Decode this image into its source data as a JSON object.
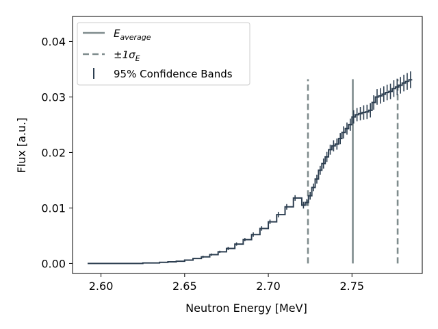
{
  "chart_data": {
    "type": "line",
    "title": "",
    "xlabel": "Neutron Energy [MeV]",
    "ylabel": "Flux [a.u.]",
    "xlim": [
      2.583,
      2.792
    ],
    "ylim": [
      -0.0018,
      0.0445
    ],
    "x_ticks": [
      "2.60",
      "2.65",
      "2.70",
      "2.75"
    ],
    "x_tick_values": [
      2.6,
      2.65,
      2.7,
      2.75
    ],
    "y_ticks": [
      "0.00",
      "0.01",
      "0.02",
      "0.03",
      "0.04"
    ],
    "y_tick_values": [
      0.0,
      0.01,
      0.02,
      0.03,
      0.04
    ],
    "grid": false,
    "legend_position": "top-left",
    "colors": {
      "spectrum": "#2c3e50",
      "reference_lines": "#7f8c8d"
    },
    "legend": [
      {
        "key": "mean",
        "style": "solid",
        "label_main": "E",
        "label_sub": "average"
      },
      {
        "key": "sigma",
        "style": "dashed",
        "label_main": "±1σ",
        "label_sub": "E"
      },
      {
        "key": "bands",
        "style": "errorbar",
        "label_main": "95% Confidence Bands",
        "label_sub": ""
      }
    ],
    "series": [
      {
        "step": "post",
        "x": [
          2.592,
          2.595,
          2.6,
          2.605,
          2.61,
          2.615,
          2.62,
          2.625,
          2.63,
          2.635,
          2.64,
          2.645,
          2.65,
          2.655,
          2.66,
          2.665,
          2.67,
          2.675,
          2.68,
          2.685,
          2.69,
          2.695,
          2.7,
          2.705,
          2.71,
          2.715,
          2.72,
          2.722,
          2.724,
          2.726,
          2.728,
          2.73,
          2.732,
          2.734,
          2.736,
          2.738,
          2.74,
          2.742,
          2.744,
          2.746,
          2.748,
          2.75,
          2.752,
          2.754,
          2.756,
          2.758,
          2.76,
          2.762,
          2.764,
          2.766,
          2.768,
          2.77,
          2.772,
          2.774,
          2.776,
          2.778,
          2.78,
          2.782,
          2.784
        ],
        "y": [
          0.0,
          0.0,
          0.0,
          0.0,
          0.0,
          0.0,
          0.0,
          0.0001,
          0.0001,
          0.0002,
          0.0003,
          0.0004,
          0.0006,
          0.0009,
          0.0012,
          0.0016,
          0.0021,
          0.0027,
          0.0035,
          0.0043,
          0.0052,
          0.0063,
          0.0075,
          0.0088,
          0.0102,
          0.0118,
          0.0105,
          0.011,
          0.0122,
          0.0137,
          0.0152,
          0.0168,
          0.018,
          0.0192,
          0.0205,
          0.0212,
          0.0215,
          0.0225,
          0.0236,
          0.0243,
          0.025,
          0.0264,
          0.0268,
          0.027,
          0.0272,
          0.0273,
          0.0276,
          0.029,
          0.03,
          0.0302,
          0.0305,
          0.0308,
          0.031,
          0.0315,
          0.0318,
          0.0321,
          0.0325,
          0.0328,
          0.0331
        ],
        "err": [
          5e-05,
          5e-05,
          5e-05,
          5e-05,
          5e-05,
          5e-05,
          5e-05,
          5e-05,
          5e-05,
          5e-05,
          8e-05,
          8e-05,
          0.0001,
          0.0001,
          0.0002,
          0.0002,
          0.0002,
          0.0003,
          0.0003,
          0.0003,
          0.0004,
          0.0004,
          0.0004,
          0.0005,
          0.0005,
          0.0005,
          0.0006,
          0.0006,
          0.0007,
          0.0007,
          0.0008,
          0.0008,
          0.0009,
          0.0009,
          0.0009,
          0.001,
          0.001,
          0.001,
          0.0011,
          0.0011,
          0.0011,
          0.0012,
          0.0012,
          0.0012,
          0.0013,
          0.0013,
          0.0013,
          0.0013,
          0.0014,
          0.0014,
          0.0014,
          0.0014,
          0.0014,
          0.0015,
          0.0015,
          0.0015,
          0.0015,
          0.0015,
          0.0015
        ]
      }
    ],
    "vlines": [
      {
        "x": 2.7505,
        "ymax": 0.0332,
        "style": "solid"
      },
      {
        "x": 2.7237,
        "ymax": 0.0332,
        "style": "dashed"
      },
      {
        "x": 2.7773,
        "ymax": 0.0332,
        "style": "dashed"
      }
    ]
  }
}
